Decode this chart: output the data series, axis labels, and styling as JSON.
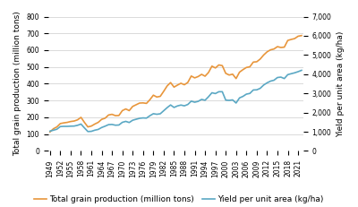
{
  "years": [
    1949,
    1950,
    1951,
    1952,
    1953,
    1954,
    1955,
    1956,
    1957,
    1958,
    1959,
    1960,
    1961,
    1962,
    1963,
    1964,
    1965,
    1966,
    1967,
    1968,
    1969,
    1970,
    1971,
    1972,
    1973,
    1974,
    1975,
    1976,
    1977,
    1978,
    1979,
    1980,
    1981,
    1982,
    1983,
    1984,
    1985,
    1986,
    1987,
    1988,
    1989,
    1990,
    1991,
    1992,
    1993,
    1994,
    1995,
    1996,
    1997,
    1998,
    1999,
    2000,
    2001,
    2002,
    2003,
    2004,
    2005,
    2006,
    2007,
    2008,
    2009,
    2010,
    2011,
    2012,
    2013,
    2014,
    2015,
    2016,
    2017,
    2018,
    2019,
    2020,
    2021,
    2022
  ],
  "production": [
    113,
    132,
    143,
    163,
    167,
    170,
    175,
    178,
    185,
    200,
    170,
    143,
    148,
    160,
    170,
    188,
    195,
    214,
    218,
    210,
    211,
    240,
    250,
    240,
    265,
    275,
    285,
    286,
    283,
    305,
    332,
    321,
    325,
    355,
    387,
    407,
    380,
    392,
    403,
    394,
    408,
    446,
    435,
    443,
    456,
    445,
    467,
    505,
    494,
    512,
    508,
    462,
    452,
    457,
    431,
    469,
    484,
    497,
    501,
    529,
    531,
    547,
    571,
    590,
    602,
    607,
    621,
    616,
    618,
    658,
    664,
    669,
    683,
    687
  ],
  "yield": [
    1030,
    1080,
    1130,
    1270,
    1280,
    1280,
    1290,
    1295,
    1335,
    1400,
    1200,
    1010,
    1020,
    1080,
    1120,
    1220,
    1290,
    1370,
    1380,
    1340,
    1350,
    1490,
    1540,
    1480,
    1600,
    1650,
    1700,
    1720,
    1710,
    1835,
    1940,
    1910,
    1935,
    2095,
    2255,
    2395,
    2265,
    2345,
    2390,
    2350,
    2420,
    2593,
    2538,
    2583,
    2685,
    2640,
    2823,
    3031,
    2989,
    3085,
    3085,
    2648,
    2634,
    2659,
    2496,
    2763,
    2842,
    2960,
    2996,
    3176,
    3183,
    3261,
    3432,
    3548,
    3637,
    3683,
    3824,
    3846,
    3771,
    3975,
    4024,
    4070,
    4130,
    4200
  ],
  "prod_color": "#E8963C",
  "yield_color": "#5BA8C4",
  "prod_label": "Total grain production (million tons)",
  "yield_label": "Yield per unit area (kg/ha)",
  "ylabel_left": "Total grain production (million tons)",
  "ylabel_right": "Yield per unit area (kg/ha)",
  "ylim_left": [
    0,
    800
  ],
  "ylim_right": [
    0,
    7000
  ],
  "yticks_left": [
    0,
    100,
    200,
    300,
    400,
    500,
    600,
    700,
    800
  ],
  "yticks_right": [
    0,
    1000,
    2000,
    3000,
    4000,
    5000,
    6000,
    7000
  ],
  "xtick_years": [
    1949,
    1952,
    1955,
    1958,
    1961,
    1964,
    1967,
    1970,
    1973,
    1976,
    1979,
    1982,
    1985,
    1988,
    1991,
    1994,
    1997,
    2000,
    2003,
    2006,
    2009,
    2012,
    2015,
    2018,
    2021
  ],
  "bg_color": "#FFFFFF",
  "line_width": 1.2,
  "legend_fontsize": 6.5,
  "axis_fontsize": 6.5,
  "tick_fontsize": 5.5
}
